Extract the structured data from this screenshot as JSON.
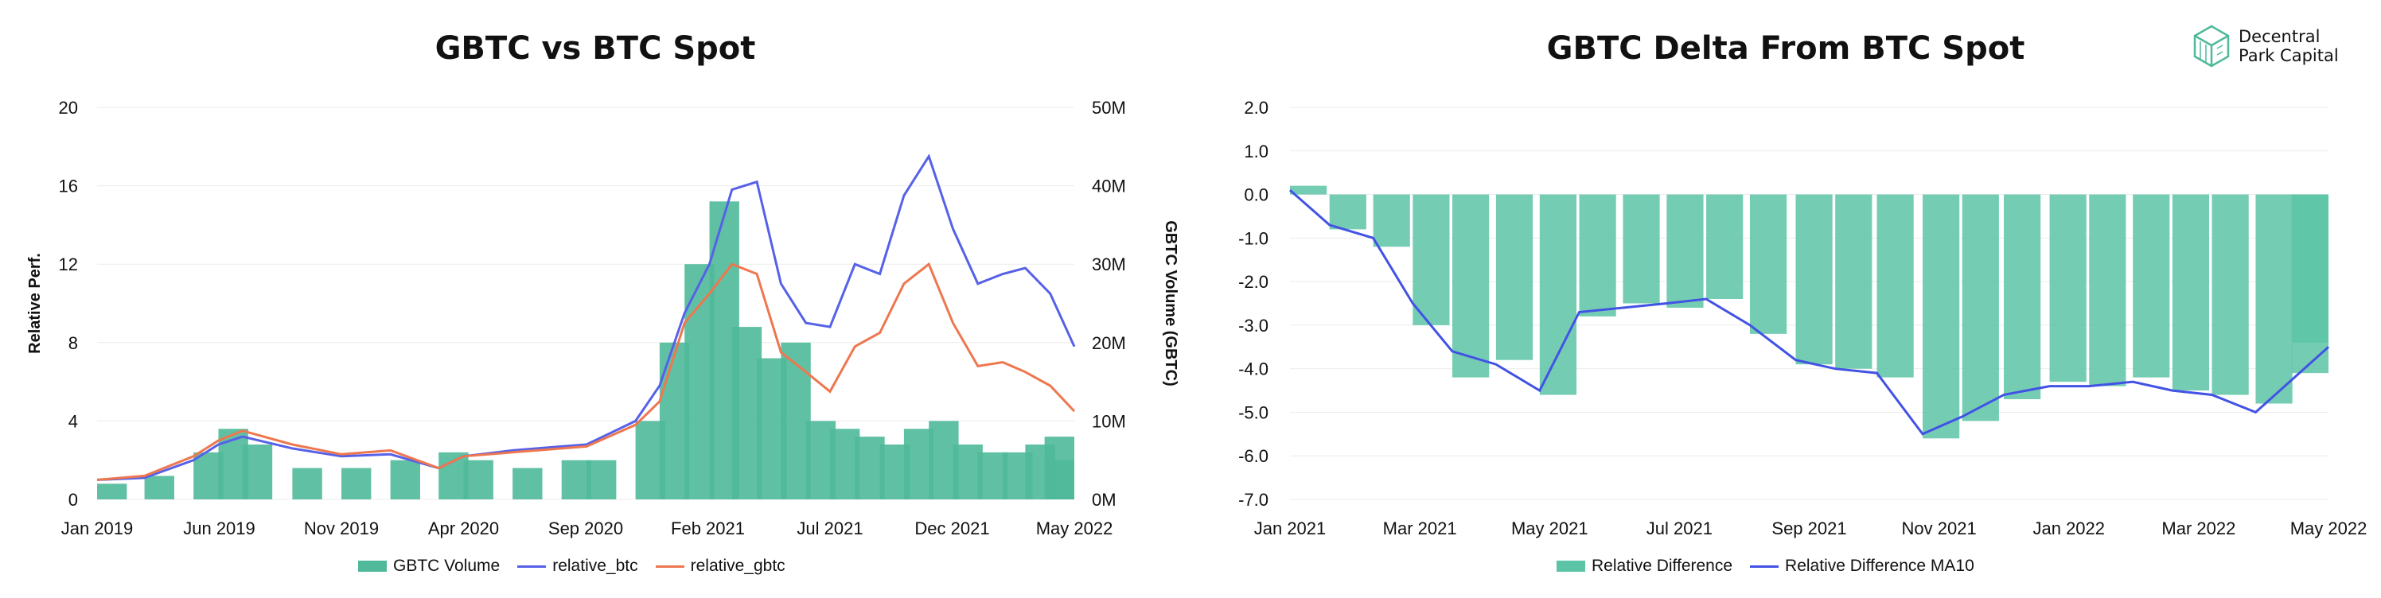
{
  "brand": {
    "line1": "Decentral",
    "line2": "Park Capital",
    "icon": "cube-icon"
  },
  "colors": {
    "volume": "#4fb99a",
    "btc": "#5661e8",
    "gbtc": "#ee7750",
    "diff": "#5cc4a6",
    "ma": "#4252e5",
    "grid": "#ececec"
  },
  "chart_data": [
    {
      "type": "line",
      "title": "GBTC vs BTC Spot",
      "ylabel": "Relative Perf.",
      "y2label": "GBTC Volume (GBTC)",
      "ylim": [
        0,
        20
      ],
      "y2lim": [
        0,
        50
      ],
      "yticks": [
        "0",
        "4",
        "8",
        "12",
        "16",
        "20"
      ],
      "y2ticks": [
        "0M",
        "10M",
        "20M",
        "30M",
        "40M",
        "50M"
      ],
      "xticks": [
        "Jan 2019",
        "Jun 2019",
        "Nov 2019",
        "Apr 2020",
        "Sep 2020",
        "Feb 2021",
        "Jul 2021",
        "Dec 2021",
        "May 2022"
      ],
      "legend": [
        "GBTC Volume",
        "relative_btc",
        "relative_gbtc"
      ],
      "legend_position": "bottom",
      "x": [
        "2019-01",
        "2019-03",
        "2019-05",
        "2019-06",
        "2019-07",
        "2019-09",
        "2019-11",
        "2020-01",
        "2020-03",
        "2020-04",
        "2020-06",
        "2020-08",
        "2020-09",
        "2020-11",
        "2020-12",
        "2021-01",
        "2021-02",
        "2021-03",
        "2021-04",
        "2021-05",
        "2021-06",
        "2021-07",
        "2021-08",
        "2021-09",
        "2021-10",
        "2021-11",
        "2021-12",
        "2022-01",
        "2022-02",
        "2022-03",
        "2022-04",
        "2022-05"
      ],
      "series": [
        {
          "name": "relative_btc",
          "axis": "left",
          "values": [
            1.0,
            1.1,
            2.0,
            2.8,
            3.2,
            2.6,
            2.2,
            2.3,
            1.6,
            2.2,
            2.5,
            2.7,
            2.8,
            4.0,
            5.8,
            9.5,
            12.0,
            15.8,
            16.2,
            11.0,
            9.0,
            8.8,
            12.0,
            11.5,
            15.5,
            17.5,
            13.8,
            11.0,
            11.5,
            11.8,
            10.5,
            7.8
          ]
        },
        {
          "name": "relative_gbtc",
          "axis": "left",
          "values": [
            1.0,
            1.2,
            2.2,
            3.0,
            3.5,
            2.8,
            2.3,
            2.5,
            1.6,
            2.2,
            2.4,
            2.6,
            2.7,
            3.8,
            5.0,
            9.0,
            10.5,
            12.0,
            11.5,
            7.5,
            6.5,
            5.5,
            7.8,
            8.5,
            11.0,
            12.0,
            9.0,
            6.8,
            7.0,
            6.5,
            5.8,
            4.5
          ]
        },
        {
          "name": "GBTC Volume",
          "axis": "right",
          "unit": "M",
          "values": [
            2,
            3,
            6,
            9,
            7,
            4,
            4,
            5,
            6,
            5,
            4,
            5,
            5,
            10,
            20,
            30,
            38,
            22,
            18,
            20,
            10,
            9,
            8,
            7,
            9,
            10,
            7,
            6,
            6,
            7,
            5,
            8
          ]
        }
      ]
    },
    {
      "type": "bar",
      "title": "GBTC Delta From BTC Spot",
      "ylim": [
        -7,
        2
      ],
      "yticks": [
        "2.0",
        "1.0",
        "0.0",
        "-1.0",
        "-2.0",
        "-3.0",
        "-4.0",
        "-5.0",
        "-6.0",
        "-7.0"
      ],
      "xticks": [
        "Jan 2021",
        "Mar 2021",
        "May 2021",
        "Jul 2021",
        "Sep 2021",
        "Nov 2021",
        "Jan 2022",
        "Mar 2022",
        "May 2022"
      ],
      "legend": [
        "Relative Difference",
        "Relative Difference MA10"
      ],
      "legend_position": "bottom",
      "x": [
        "2021-01-01",
        "2021-01-20",
        "2021-02-10",
        "2021-03-01",
        "2021-03-20",
        "2021-04-10",
        "2021-05-01",
        "2021-05-20",
        "2021-06-10",
        "2021-07-01",
        "2021-07-20",
        "2021-08-10",
        "2021-09-01",
        "2021-09-20",
        "2021-10-10",
        "2021-11-01",
        "2021-11-20",
        "2021-12-10",
        "2022-01-01",
        "2022-01-20",
        "2022-02-10",
        "2022-03-01",
        "2022-03-20",
        "2022-04-10",
        "2022-05-01",
        "2022-05-15"
      ],
      "series": [
        {
          "name": "Relative Difference",
          "values": [
            0.2,
            -0.8,
            -1.2,
            -3.0,
            -4.2,
            -3.8,
            -4.6,
            -2.8,
            -2.5,
            -2.6,
            -2.4,
            -3.2,
            -3.9,
            -4.0,
            -4.2,
            -5.6,
            -5.2,
            -4.7,
            -4.3,
            -4.4,
            -4.2,
            -4.5,
            -4.6,
            -4.8,
            -4.1,
            -3.4
          ]
        },
        {
          "name": "Relative Difference MA10",
          "values": [
            0.1,
            -0.7,
            -1.0,
            -2.5,
            -3.6,
            -3.9,
            -4.5,
            -2.7,
            -2.6,
            -2.5,
            -2.4,
            -3.0,
            -3.8,
            -4.0,
            -4.1,
            -5.5,
            -5.1,
            -4.6,
            -4.4,
            -4.4,
            -4.3,
            -4.5,
            -4.6,
            -5.0,
            -4.1,
            -3.5
          ]
        }
      ]
    }
  ]
}
